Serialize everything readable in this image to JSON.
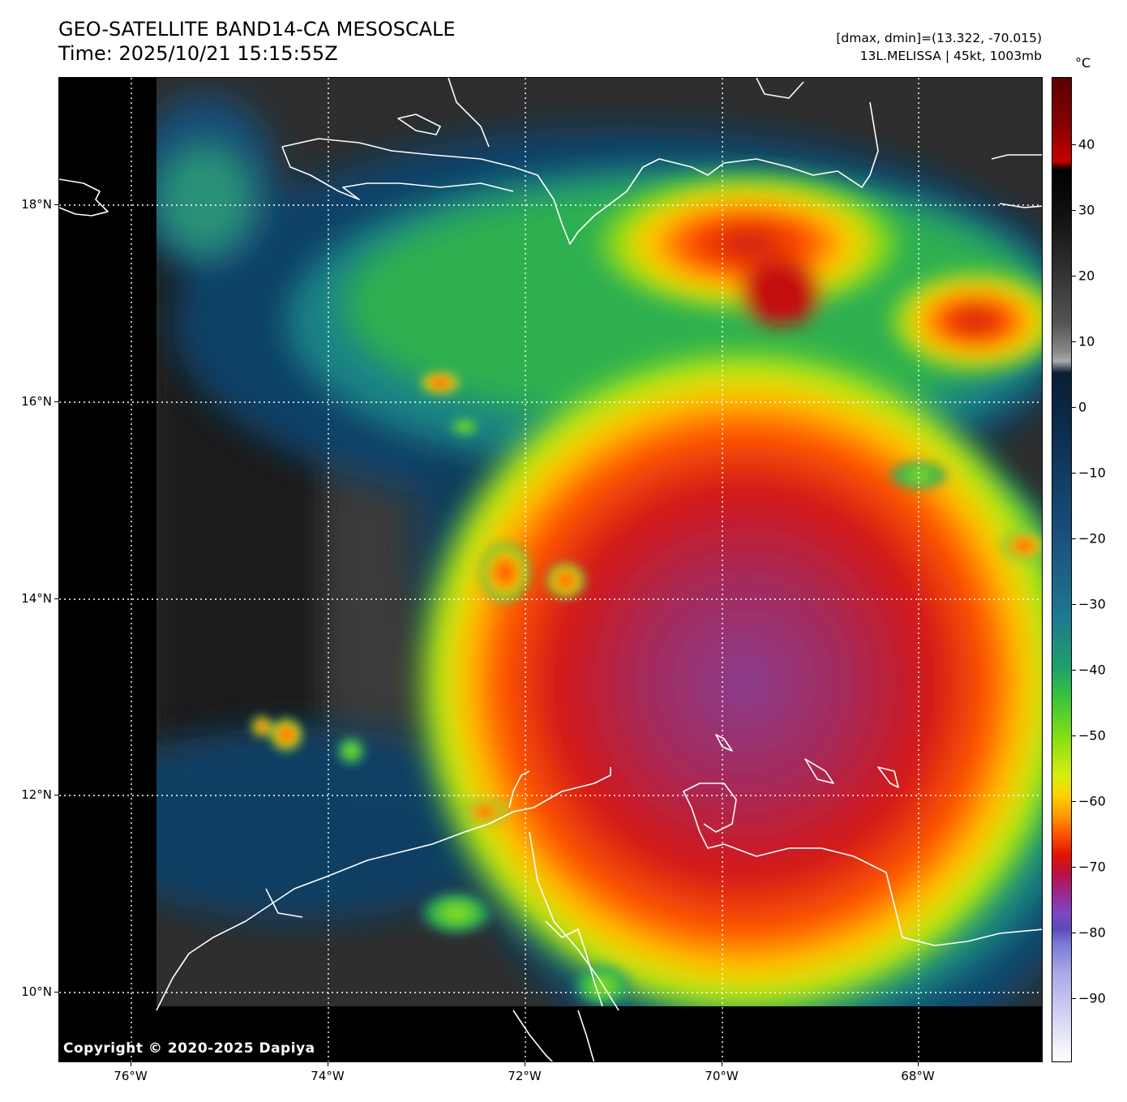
{
  "header": {
    "title_line1": "GEO-SATELLITE BAND14-CA MESOSCALE",
    "title_line2": "Time: 2025/10/21 15:15:55Z",
    "dmax_dmin": "[dmax, dmin]=(13.322, -70.015)",
    "storm_info": "13L.MELISSA | 45kt, 1003mb"
  },
  "map": {
    "copyright": "Copyright © 2020-2025 Dapiya",
    "lat_labels": [
      "18°N",
      "16°N",
      "14°N",
      "12°N",
      "10°N"
    ],
    "lon_labels": [
      "76°W",
      "74°W",
      "72°W",
      "70°W",
      "68°W"
    ],
    "coastline_color": "#ffffff",
    "gridline_style": "dotted white"
  },
  "colorbar": {
    "unit": "°C",
    "labels": [
      "40",
      "30",
      "20",
      "10",
      "0",
      "−10",
      "−20",
      "−30",
      "−40",
      "−50",
      "−60",
      "−70",
      "−80",
      "−90"
    ],
    "colors": {
      "warm_end": "#5a0000",
      "mid_gray": "#888888",
      "cyan": "#1f7a90",
      "green": "#3ac43a",
      "yellow": "#d8ee10",
      "red": "#e01500",
      "purple": "#7a48c4",
      "cold_end": "#ffffff"
    }
  }
}
